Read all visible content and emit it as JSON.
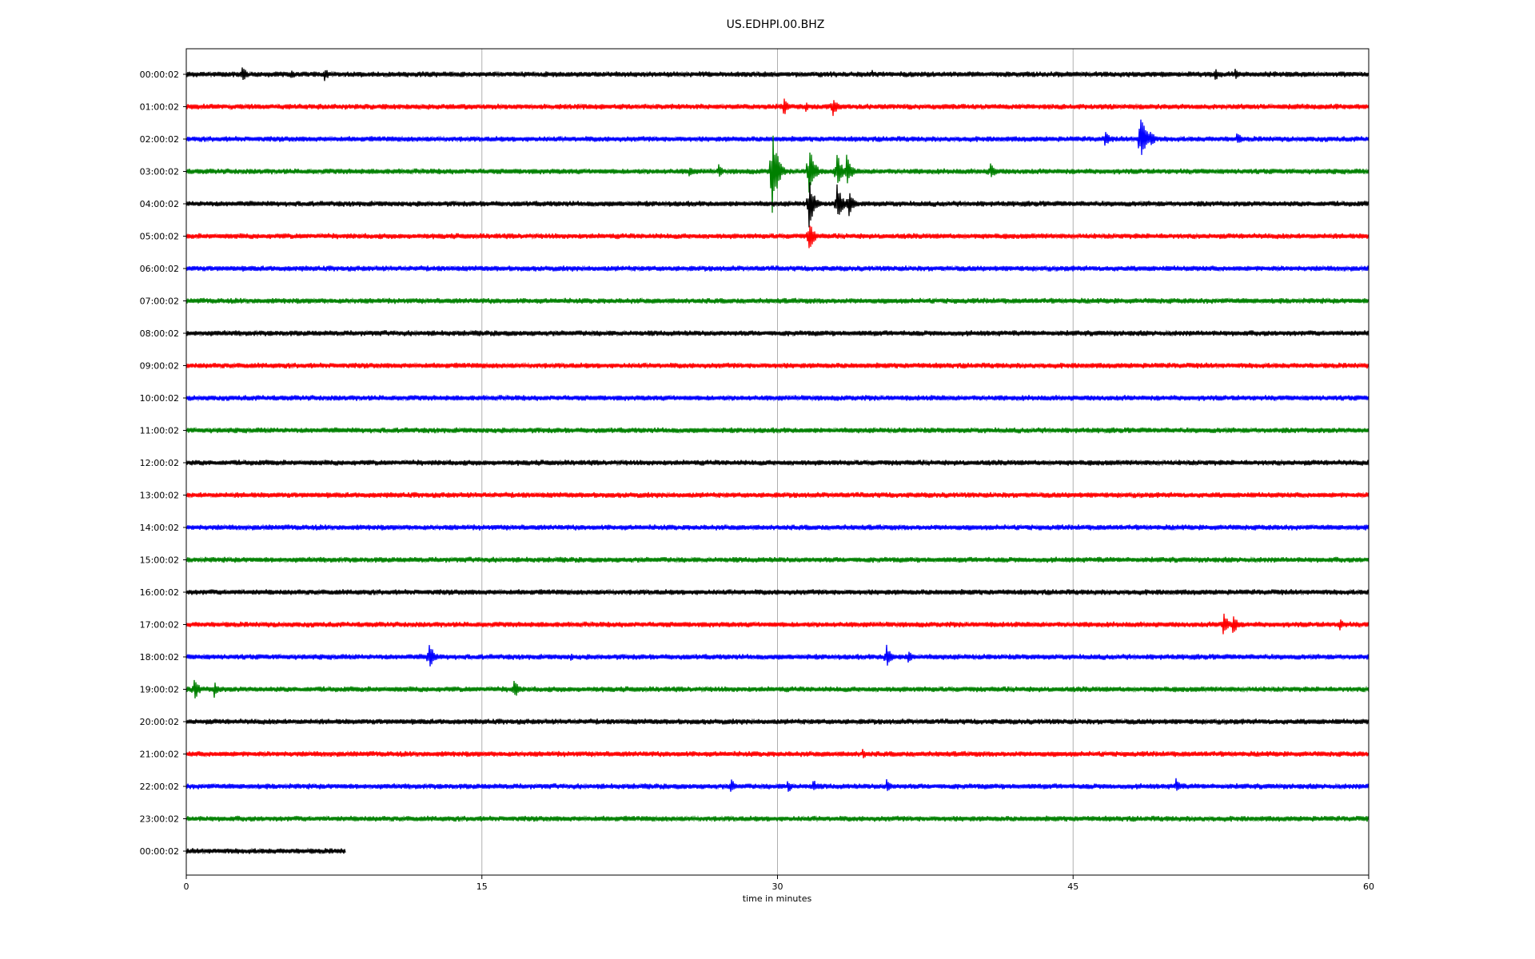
{
  "chart_data": {
    "type": "line",
    "title": "US.EDHPI.00.BHZ",
    "xlabel": "time in minutes",
    "ylabel": "",
    "xlim": [
      0,
      60
    ],
    "x_ticks": [
      0,
      15,
      30,
      45,
      60
    ],
    "x_tick_labels": [
      "0",
      "15",
      "30",
      "45",
      "60"
    ],
    "grid": "vertical lines at x ticks",
    "colors": [
      "#000000",
      "#ff0000",
      "#0000ff",
      "#008000"
    ],
    "rows": [
      {
        "label": "00:00:02",
        "color": "#000000",
        "end_minute": 60,
        "events": [
          [
            2.8,
            14
          ],
          [
            5.3,
            8
          ],
          [
            7.0,
            10
          ],
          [
            34.8,
            6
          ],
          [
            52.2,
            9
          ],
          [
            53.2,
            8
          ]
        ]
      },
      {
        "label": "01:00:02",
        "color": "#ff0000",
        "end_minute": 60,
        "events": [
          [
            30.3,
            14
          ],
          [
            31.4,
            8
          ],
          [
            32.8,
            16
          ]
        ]
      },
      {
        "label": "02:00:02",
        "color": "#0000ff",
        "end_minute": 60,
        "events": [
          [
            46.6,
            12
          ],
          [
            48.4,
            44
          ],
          [
            48.9,
            14
          ],
          [
            53.3,
            10
          ]
        ]
      },
      {
        "label": "03:00:02",
        "color": "#008000",
        "end_minute": 60,
        "events": [
          [
            25.5,
            10
          ],
          [
            27.0,
            10
          ],
          [
            29.7,
            72
          ],
          [
            31.6,
            38
          ],
          [
            33.0,
            28
          ],
          [
            33.5,
            22
          ],
          [
            40.8,
            14
          ]
        ]
      },
      {
        "label": "04:00:02",
        "color": "#000000",
        "end_minute": 60,
        "events": [
          [
            31.6,
            34
          ],
          [
            33.0,
            30
          ],
          [
            33.6,
            20
          ]
        ]
      },
      {
        "label": "05:00:02",
        "color": "#ff0000",
        "end_minute": 60,
        "events": [
          [
            31.6,
            22
          ]
        ]
      },
      {
        "label": "06:00:02",
        "color": "#0000ff",
        "end_minute": 60,
        "events": []
      },
      {
        "label": "07:00:02",
        "color": "#008000",
        "end_minute": 60,
        "events": []
      },
      {
        "label": "08:00:02",
        "color": "#000000",
        "end_minute": 60,
        "events": []
      },
      {
        "label": "09:00:02",
        "color": "#ff0000",
        "end_minute": 60,
        "events": []
      },
      {
        "label": "10:00:02",
        "color": "#0000ff",
        "end_minute": 60,
        "events": []
      },
      {
        "label": "11:00:02",
        "color": "#008000",
        "end_minute": 60,
        "events": []
      },
      {
        "label": "12:00:02",
        "color": "#000000",
        "end_minute": 60,
        "events": []
      },
      {
        "label": "13:00:02",
        "color": "#ff0000",
        "end_minute": 60,
        "events": []
      },
      {
        "label": "14:00:02",
        "color": "#0000ff",
        "end_minute": 60,
        "events": []
      },
      {
        "label": "15:00:02",
        "color": "#008000",
        "end_minute": 60,
        "events": []
      },
      {
        "label": "16:00:02",
        "color": "#000000",
        "end_minute": 60,
        "events": []
      },
      {
        "label": "17:00:02",
        "color": "#ff0000",
        "end_minute": 60,
        "events": [
          [
            52.6,
            18
          ],
          [
            53.1,
            16
          ],
          [
            58.5,
            10
          ]
        ]
      },
      {
        "label": "18:00:02",
        "color": "#0000ff",
        "end_minute": 60,
        "events": [
          [
            12.3,
            22
          ],
          [
            19.5,
            6
          ],
          [
            35.5,
            20
          ],
          [
            36.6,
            12
          ]
        ]
      },
      {
        "label": "19:00:02",
        "color": "#008000",
        "end_minute": 60,
        "events": [
          [
            0.4,
            16
          ],
          [
            1.4,
            12
          ],
          [
            16.6,
            16
          ]
        ]
      },
      {
        "label": "20:00:02",
        "color": "#000000",
        "end_minute": 60,
        "events": []
      },
      {
        "label": "21:00:02",
        "color": "#ff0000",
        "end_minute": 60,
        "events": [
          [
            34.3,
            8
          ]
        ]
      },
      {
        "label": "22:00:02",
        "color": "#0000ff",
        "end_minute": 60,
        "events": [
          [
            27.6,
            12
          ],
          [
            30.5,
            10
          ],
          [
            31.8,
            10
          ],
          [
            35.5,
            12
          ],
          [
            50.2,
            12
          ]
        ]
      },
      {
        "label": "23:00:02",
        "color": "#008000",
        "end_minute": 60,
        "events": []
      },
      {
        "label": "00:00:02",
        "color": "#000000",
        "end_minute": 8.1,
        "events": []
      }
    ]
  }
}
